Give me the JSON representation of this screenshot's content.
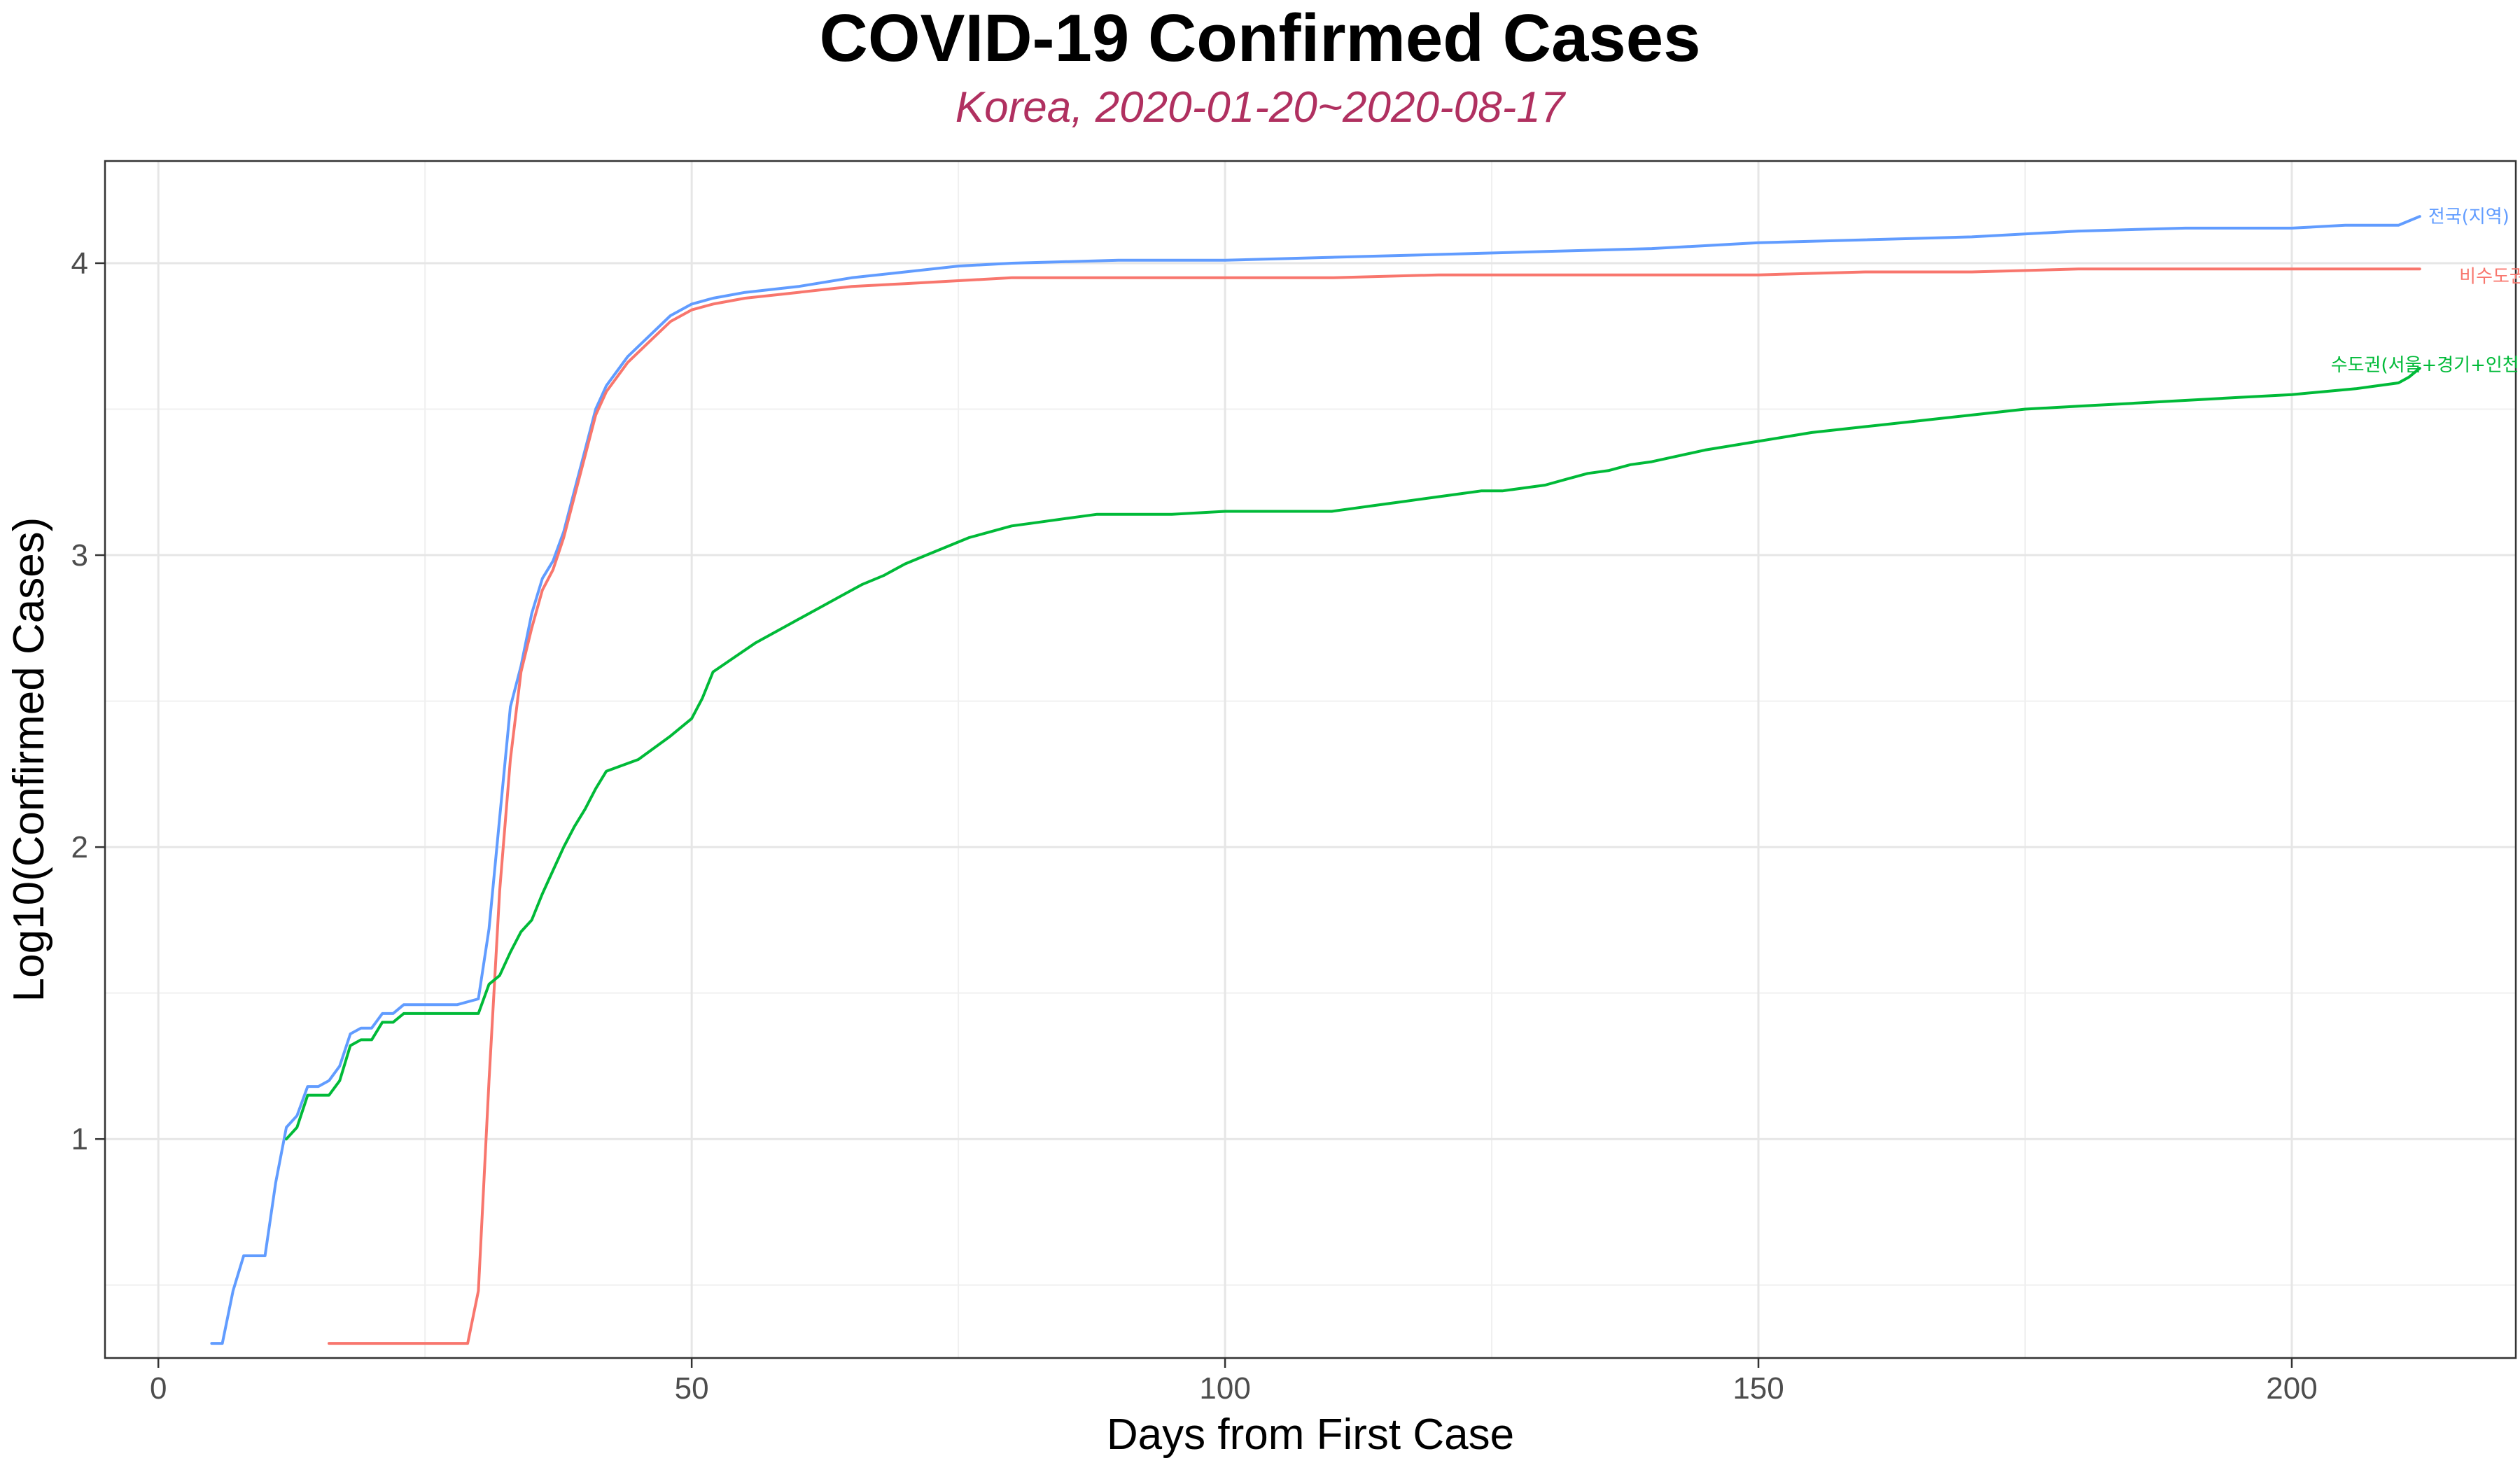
{
  "chart_data": {
    "type": "line",
    "title": "COVID-19 Confirmed Cases",
    "subtitle": "Korea, 2020-01-20~2020-08-17",
    "xlabel": "Days from First Case",
    "ylabel": "Log10(Confirmed Cases)",
    "xlim": [
      -5,
      221
    ],
    "ylim": [
      0.25,
      4.35
    ],
    "xticks": [
      0,
      50,
      100,
      150,
      200
    ],
    "yticks": [
      1,
      2,
      3,
      4
    ],
    "grid": true,
    "legend": "direct labels at line ends",
    "series": [
      {
        "name": "전국(지역)",
        "color": "#619CFF",
        "x": [
          5,
          6,
          7,
          8,
          10,
          11,
          12,
          13,
          14,
          15,
          16,
          17,
          18,
          19,
          20,
          21,
          22,
          23,
          24,
          28,
          30,
          31,
          32,
          33,
          34,
          35,
          36,
          37,
          38,
          39,
          40,
          41,
          42,
          44,
          46,
          48,
          50,
          52,
          55,
          60,
          65,
          70,
          75,
          80,
          90,
          100,
          110,
          120,
          130,
          140,
          150,
          160,
          170,
          180,
          190,
          200,
          205,
          210,
          212
        ],
        "y": [
          0.3,
          0.3,
          0.48,
          0.6,
          0.6,
          0.85,
          1.04,
          1.08,
          1.18,
          1.18,
          1.2,
          1.25,
          1.36,
          1.38,
          1.38,
          1.43,
          1.43,
          1.46,
          1.46,
          1.46,
          1.48,
          1.72,
          2.1,
          2.48,
          2.62,
          2.8,
          2.92,
          2.98,
          3.08,
          3.22,
          3.36,
          3.5,
          3.58,
          3.68,
          3.75,
          3.82,
          3.86,
          3.88,
          3.9,
          3.92,
          3.95,
          3.97,
          3.99,
          4.0,
          4.01,
          4.01,
          4.02,
          4.03,
          4.04,
          4.05,
          4.07,
          4.08,
          4.09,
          4.11,
          4.12,
          4.12,
          4.13,
          4.13,
          4.16
        ]
      },
      {
        "name": "비수도권",
        "color": "#F8766D",
        "x": [
          16,
          20,
          25,
          29,
          30,
          31,
          32,
          33,
          34,
          35,
          36,
          37,
          38,
          39,
          40,
          41,
          42,
          44,
          46,
          48,
          50,
          52,
          55,
          60,
          65,
          70,
          75,
          80,
          90,
          100,
          110,
          120,
          130,
          140,
          150,
          160,
          170,
          180,
          190,
          200,
          212
        ],
        "y": [
          0.3,
          0.3,
          0.3,
          0.3,
          0.48,
          1.2,
          1.85,
          2.3,
          2.6,
          2.75,
          2.88,
          2.95,
          3.06,
          3.2,
          3.34,
          3.48,
          3.56,
          3.66,
          3.73,
          3.8,
          3.84,
          3.86,
          3.88,
          3.9,
          3.92,
          3.93,
          3.94,
          3.95,
          3.95,
          3.95,
          3.95,
          3.96,
          3.96,
          3.96,
          3.96,
          3.97,
          3.97,
          3.98,
          3.98,
          3.98,
          3.98
        ]
      },
      {
        "name": "수도권(서울+경기+인천)",
        "color": "#00BA38",
        "x": [
          12,
          13,
          14,
          16,
          17,
          18,
          19,
          20,
          21,
          22,
          23,
          25,
          30,
          31,
          32,
          33,
          34,
          35,
          36,
          37,
          38,
          39,
          40,
          41,
          42,
          45,
          48,
          50,
          51,
          52,
          54,
          56,
          58,
          60,
          62,
          64,
          66,
          68,
          70,
          72,
          74,
          76,
          78,
          80,
          82,
          86,
          88,
          90,
          95,
          100,
          105,
          110,
          112,
          114,
          116,
          118,
          120,
          122,
          124,
          126,
          128,
          130,
          132,
          134,
          136,
          138,
          140,
          145,
          150,
          155,
          160,
          165,
          170,
          175,
          180,
          185,
          190,
          195,
          200,
          203,
          206,
          208,
          210,
          211,
          212
        ],
        "y": [
          1.0,
          1.04,
          1.15,
          1.15,
          1.2,
          1.32,
          1.34,
          1.34,
          1.4,
          1.4,
          1.43,
          1.43,
          1.43,
          1.53,
          1.56,
          1.64,
          1.71,
          1.75,
          1.84,
          1.92,
          2.0,
          2.07,
          2.13,
          2.2,
          2.26,
          2.3,
          2.38,
          2.44,
          2.51,
          2.6,
          2.65,
          2.7,
          2.74,
          2.78,
          2.82,
          2.86,
          2.9,
          2.93,
          2.97,
          3.0,
          3.03,
          3.06,
          3.08,
          3.1,
          3.11,
          3.13,
          3.14,
          3.14,
          3.14,
          3.15,
          3.15,
          3.15,
          3.16,
          3.17,
          3.18,
          3.19,
          3.2,
          3.21,
          3.22,
          3.22,
          3.23,
          3.24,
          3.26,
          3.28,
          3.29,
          3.31,
          3.32,
          3.36,
          3.39,
          3.42,
          3.44,
          3.46,
          3.48,
          3.5,
          3.51,
          3.52,
          3.53,
          3.54,
          3.55,
          3.56,
          3.57,
          3.58,
          3.59,
          3.61,
          3.64
        ]
      }
    ]
  }
}
